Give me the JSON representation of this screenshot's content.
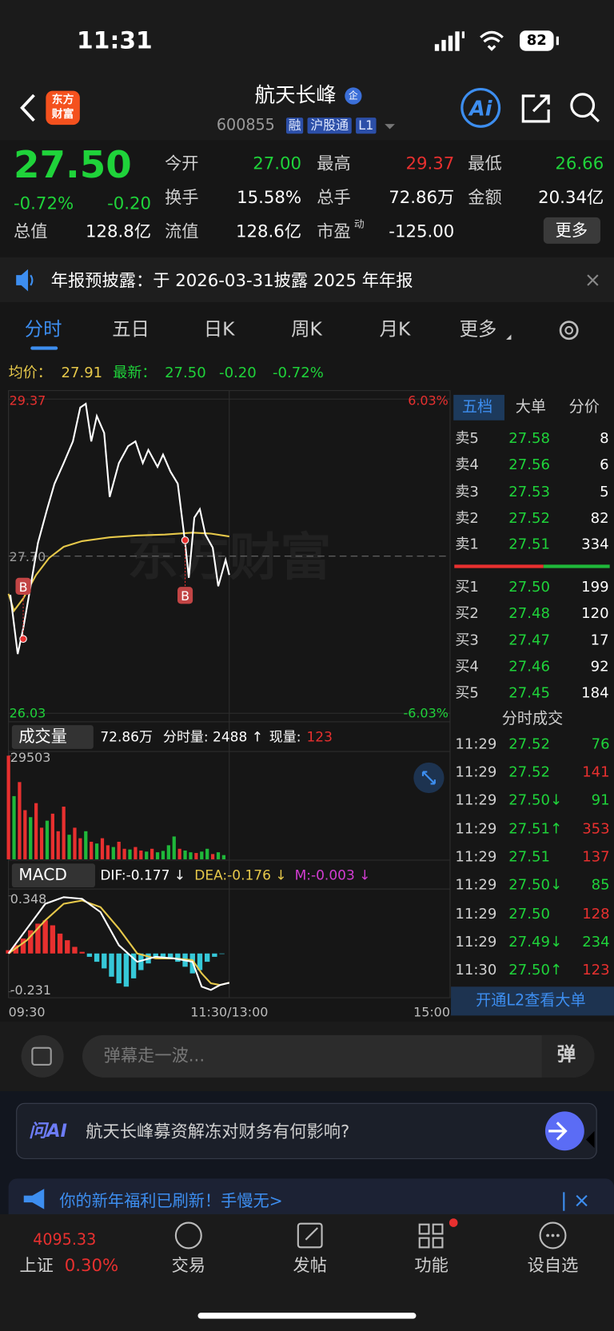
{
  "status_bar": {
    "time": "11:31",
    "battery": "82"
  },
  "header": {
    "logo": [
      "东方",
      "财富"
    ],
    "title": "航天长峰",
    "title_badge": "企",
    "code": "600855",
    "tags": [
      "融",
      "沪股通",
      "L1"
    ]
  },
  "quote": {
    "price": "27.50",
    "change_pct": "-0.72%",
    "change": "-0.20",
    "stats": [
      {
        "label": "今开",
        "value": "27.00"
      },
      {
        "label": "最高",
        "value": "29.37"
      },
      {
        "label": "最低",
        "value": "26.66"
      },
      {
        "label": "换手",
        "value": "15.58%"
      },
      {
        "label": "总手",
        "value": "72.86万"
      },
      {
        "label": "金额",
        "value": "20.34亿"
      },
      {
        "label": "总值",
        "value": "128.8亿"
      },
      {
        "label": "流值",
        "value": "128.6亿"
      },
      {
        "label": "市盈",
        "label_sup": "动",
        "value": "-125.00"
      }
    ],
    "more": "更多"
  },
  "notice": "年报预披露：于 2026-03-31披露 2025 年年报",
  "tabs": [
    "分时",
    "五日",
    "日K",
    "周K",
    "月K",
    "更多"
  ],
  "info_line": {
    "avg_label": "均价：",
    "avg": "27.91",
    "latest_label": "最新：",
    "latest": "27.50",
    "change": "-0.20",
    "change_pct": "-0.72%"
  },
  "intraday": {
    "xlim": [
      0,
      240
    ],
    "xticks": [
      {
        "value": 0,
        "label": "09:30"
      },
      {
        "value": 120,
        "label": "11:30/13:00"
      },
      {
        "value": 240,
        "label": "15:00"
      }
    ],
    "watermark": "东方财富",
    "price": {
      "ylim": [
        26.03,
        29.37
      ],
      "yticks": [
        29.37,
        {
          "value": 27.7,
          "label": "27.70"
        },
        26.03
      ],
      "ytick_colors": [
        "#e8302f",
        "#9a9a9a",
        "#1fd33a"
      ],
      "y2lim": [
        -6.03,
        6.03
      ],
      "y2ticks": [
        {
          "value": 6.03,
          "label": "6.03%"
        },
        {
          "value": -6.03,
          "label": "-6.03%"
        }
      ],
      "y2tick_colors": [
        "#e8302f",
        "#1fd33a"
      ],
      "price_line": {
        "color": "#ffffff",
        "x": [
          1,
          5,
          8,
          12,
          16,
          21,
          25,
          30,
          35,
          39,
          42,
          45,
          48,
          52,
          55,
          60,
          65,
          69,
          73,
          76,
          81,
          84,
          88,
          92,
          96,
          98,
          101,
          104,
          107,
          111,
          114,
          118,
          120
        ],
        "values": [
          27.29,
          26.66,
          26.93,
          27.38,
          27.84,
          28.2,
          28.47,
          28.69,
          28.92,
          29.28,
          29.32,
          28.92,
          29.19,
          29.01,
          28.33,
          28.69,
          28.87,
          28.92,
          28.69,
          28.83,
          28.65,
          28.78,
          28.6,
          28.47,
          27.84,
          27.47,
          28.11,
          28.2,
          27.93,
          27.79,
          27.38,
          27.66,
          27.5
        ]
      },
      "avg_line": {
        "color": "#e6c84a",
        "x": [
          0,
          3,
          8,
          15,
          22,
          30,
          40,
          55,
          70,
          85,
          100,
          110,
          120
        ],
        "values": [
          27.3,
          27.12,
          27.25,
          27.5,
          27.68,
          27.8,
          27.86,
          27.9,
          27.92,
          27.93,
          27.95,
          27.94,
          27.91
        ]
      },
      "buy_markers": [
        {
          "label": "B",
          "x": 8,
          "price": 26.82
        },
        {
          "label": "B",
          "x": 96,
          "price": 27.87
        }
      ]
    },
    "volume": {
      "ylim": [
        0,
        29503
      ],
      "yticks": [
        29503
      ],
      "x": [
        0,
        3,
        6,
        9,
        12,
        15,
        18,
        21,
        24,
        27,
        30,
        33,
        36,
        39,
        42,
        45,
        48,
        51,
        54,
        57,
        60,
        63,
        66,
        69,
        72,
        75,
        78,
        81,
        84,
        87,
        90,
        93,
        96,
        99,
        102,
        105,
        108,
        111,
        114,
        117
      ],
      "values": [
        29503,
        18000,
        22000,
        14000,
        12000,
        16000,
        9000,
        11000,
        13000,
        8000,
        15000,
        7000,
        9000,
        6000,
        8000,
        5000,
        4500,
        6000,
        4000,
        3500,
        5000,
        3000,
        2800,
        3500,
        2500,
        2200,
        3000,
        2000,
        2400,
        4000,
        6500,
        3000,
        2500,
        2000,
        1800,
        2200,
        3000,
        1500,
        2000,
        1200
      ],
      "colors": [
        "#e8302f",
        "#1fb83a",
        "#e8302f",
        "#e8302f",
        "#1fb83a",
        "#e8302f",
        "#e8302f",
        "#1fb83a",
        "#e8302f",
        "#e8302f",
        "#e8302f",
        "#1fb83a",
        "#e8302f",
        "#e8302f",
        "#1fb83a",
        "#e8302f",
        "#1fb83a",
        "#e8302f",
        "#e8302f",
        "#1fb83a",
        "#e8302f",
        "#e8302f",
        "#1fb83a",
        "#e8302f",
        "#e8302f",
        "#1fb83a",
        "#e8302f",
        "#1fb83a",
        "#1fb83a",
        "#1fb83a",
        "#1fb83a",
        "#e8302f",
        "#1fb83a",
        "#1fb83a",
        "#e8302f",
        "#1fb83a",
        "#1fb83a",
        "#e8302f",
        "#1fb83a",
        "#1fb83a"
      ]
    },
    "macd": {
      "ylim": [
        -0.231,
        0.348
      ],
      "yticks": [
        0.348,
        -0.231
      ],
      "up_color": "#e8302f",
      "down_color": "#36c8d8",
      "hist": {
        "x": [
          0,
          4,
          8,
          12,
          16,
          20,
          24,
          28,
          32,
          36,
          40,
          44,
          48,
          52,
          56,
          60,
          64,
          68,
          72,
          76,
          80,
          84,
          88,
          92,
          96,
          100,
          104,
          108,
          112,
          116
        ],
        "values": [
          0.02,
          0.05,
          0.09,
          0.14,
          0.18,
          0.2,
          0.17,
          0.12,
          0.08,
          0.04,
          0.01,
          -0.02,
          -0.05,
          -0.09,
          -0.14,
          -0.18,
          -0.2,
          -0.15,
          -0.1,
          -0.06,
          -0.03,
          -0.02,
          -0.03,
          -0.05,
          -0.08,
          -0.12,
          -0.1,
          -0.05,
          -0.02,
          -0.003
        ]
      },
      "dif": {
        "color": "#ffffff",
        "x": [
          0,
          10,
          20,
          30,
          40,
          50,
          60,
          70,
          80,
          90,
          100,
          105,
          110,
          115,
          120
        ],
        "values": [
          0.0,
          0.15,
          0.3,
          0.34,
          0.33,
          0.25,
          0.05,
          -0.05,
          -0.02,
          -0.03,
          -0.05,
          -0.2,
          -0.22,
          -0.19,
          -0.177
        ]
      },
      "dea": {
        "color": "#e6c84a",
        "x": [
          0,
          10,
          20,
          30,
          40,
          50,
          60,
          70,
          80,
          90,
          100,
          105,
          110,
          115,
          120
        ],
        "values": [
          0.0,
          0.08,
          0.2,
          0.3,
          0.32,
          0.28,
          0.15,
          0.0,
          -0.03,
          -0.03,
          -0.04,
          -0.12,
          -0.18,
          -0.19,
          -0.176
        ]
      }
    }
  },
  "volume_header": {
    "label": "成交量",
    "total": "72.86万",
    "minute_volume": "分时量: 2488 ↑",
    "current_label": "现量:",
    "current": "123"
  },
  "macd_header": {
    "label": "MACD",
    "dif": "DIF:-0.177 ↓",
    "dea": "DEA:-0.176 ↓",
    "m": "M:-0.003 ↓"
  },
  "order_book": {
    "tabs": [
      "五档",
      "大单",
      "分价"
    ],
    "asks": [
      {
        "label": "卖5",
        "price": "27.58",
        "volume": "8"
      },
      {
        "label": "卖4",
        "price": "27.56",
        "volume": "6"
      },
      {
        "label": "卖3",
        "price": "27.53",
        "volume": "5"
      },
      {
        "label": "卖2",
        "price": "27.52",
        "volume": "82"
      },
      {
        "label": "卖1",
        "price": "27.51",
        "volume": "334"
      }
    ],
    "bids": [
      {
        "label": "买1",
        "price": "27.50",
        "volume": "199"
      },
      {
        "label": "买2",
        "price": "27.48",
        "volume": "120"
      },
      {
        "label": "买3",
        "price": "27.47",
        "volume": "17"
      },
      {
        "label": "买4",
        "price": "27.46",
        "volume": "92"
      },
      {
        "label": "买5",
        "price": "27.45",
        "volume": "184"
      }
    ]
  },
  "trades": {
    "title": "分时成交",
    "rows": [
      {
        "time": "11:29",
        "price": "27.52",
        "volume": "76",
        "color": "#1fd33a"
      },
      {
        "time": "11:29",
        "price": "27.52",
        "volume": "141",
        "color": "#e8302f"
      },
      {
        "time": "11:29",
        "price": "27.50↓",
        "volume": "91",
        "color": "#1fd33a"
      },
      {
        "time": "11:29",
        "price": "27.51↑",
        "volume": "353",
        "color": "#e8302f"
      },
      {
        "time": "11:29",
        "price": "27.51",
        "volume": "137",
        "color": "#e8302f"
      },
      {
        "time": "11:29",
        "price": "27.50↓",
        "volume": "85",
        "color": "#1fd33a"
      },
      {
        "time": "11:29",
        "price": "27.50",
        "volume": "128",
        "color": "#e8302f"
      },
      {
        "time": "11:29",
        "price": "27.49↓",
        "volume": "234",
        "color": "#1fd33a"
      },
      {
        "time": "11:30",
        "price": "27.50↑",
        "volume": "123",
        "color": "#e8302f"
      }
    ]
  },
  "l2_banner": "开通L2查看大单",
  "danmaku": {
    "placeholder": "弹幕走一波...",
    "button": "弹"
  },
  "ask_ai": {
    "label": "问AI",
    "question": "航天长峰募资解冻对财务有何影响?"
  },
  "promo": "你的新年福利已刷新！手慢无>",
  "bottom_nav": {
    "index_value": "4095.33",
    "index_name": "上证",
    "index_change": "0.30%",
    "items": [
      "交易",
      "发帖",
      "功能",
      "设自选"
    ]
  }
}
